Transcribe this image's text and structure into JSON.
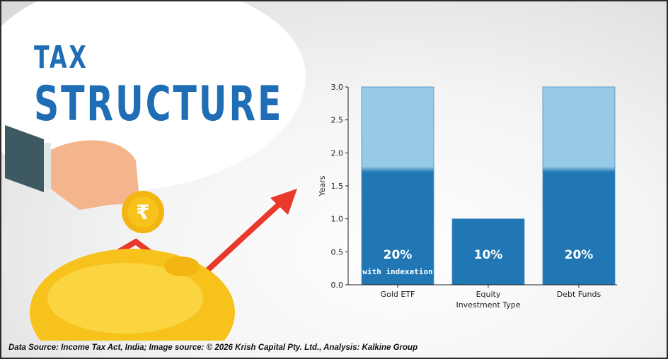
{
  "header": {
    "line1": "TAX",
    "line2": "STRUCTURE"
  },
  "footer": {
    "text": "Data Source: Income Tax Act, India; Image source: © 2026 Krish Capital Pty. Ltd., Analysis: Kalkine Group"
  },
  "illustration": {
    "icons": [
      "hand-icon",
      "rupee-coin-icon",
      "piggy-bank-icon",
      "rising-arrow-icon"
    ],
    "coin_symbol": "₹"
  },
  "colors": {
    "title": "#1f6db4",
    "bar": "#2077b4",
    "bar_highlight": "#96cae6",
    "arrow": "#e8392a",
    "piggy": "#f7c21c"
  },
  "chart_data": {
    "type": "bar",
    "categories": [
      "Gold ETF",
      "Equity",
      "Debt Funds"
    ],
    "values": [
      3,
      1,
      3
    ],
    "bar_labels": [
      "20%",
      "10%",
      "20%"
    ],
    "bar_sublabels": [
      "(with indexation)",
      "",
      ""
    ],
    "xlabel": "Investment Type",
    "ylabel": "Years",
    "ylim": [
      0,
      3
    ],
    "yticks": [
      "0.0",
      "0.5",
      "1.0",
      "1.5",
      "2.0",
      "2.5",
      "3.0"
    ],
    "grid": false
  }
}
